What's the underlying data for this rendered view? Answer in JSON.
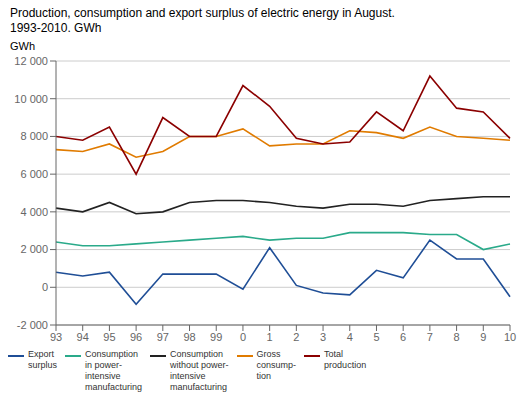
{
  "chart_data": {
    "type": "line",
    "title": "Production, consumption and export surplus of electric energy in August.",
    "subtitle": "1993-2010. GWh",
    "y_label": "GWh",
    "categories": [
      "93",
      "94",
      "95",
      "96",
      "97",
      "98",
      "99",
      "0",
      "1",
      "2",
      "3",
      "4",
      "5",
      "6",
      "7",
      "8",
      "9",
      "10"
    ],
    "series": [
      {
        "name": "Export\nsurplus",
        "color": "#1f4e96",
        "values": [
          800,
          600,
          800,
          -900,
          700,
          700,
          700,
          -100,
          2100,
          100,
          -300,
          -400,
          900,
          500,
          2500,
          1500,
          1500,
          -500
        ]
      },
      {
        "name": "Consumption\nin power-\nintensive\nmanufacturing",
        "color": "#2aaa8a",
        "values": [
          2400,
          2200,
          2200,
          2300,
          2400,
          2500,
          2600,
          2700,
          2500,
          2600,
          2600,
          2900,
          2900,
          2900,
          2800,
          2800,
          2000,
          2300
        ]
      },
      {
        "name": "Consumption\nwithout power-\nintensive\nmanufacturing",
        "color": "#222222",
        "values": [
          4200,
          4000,
          4500,
          3900,
          4000,
          4500,
          4600,
          4600,
          4500,
          4300,
          4200,
          4400,
          4400,
          4300,
          4600,
          4700,
          4800,
          4800
        ]
      },
      {
        "name": "Gross\nconsump-\ntion",
        "color": "#e07b00",
        "values": [
          7300,
          7200,
          7600,
          6900,
          7200,
          8000,
          8000,
          8400,
          7500,
          7600,
          7600,
          8300,
          8200,
          7900,
          8500,
          8000,
          7900,
          7800
        ]
      },
      {
        "name": "Total\nproduction",
        "color": "#8b0000",
        "values": [
          8000,
          7800,
          8500,
          6000,
          9000,
          8000,
          8000,
          10700,
          9600,
          7900,
          7600,
          7700,
          9300,
          8300,
          11200,
          9500,
          9300,
          7900
        ]
      }
    ],
    "ylim": [
      -2000,
      12000
    ],
    "yticks": [
      {
        "value": -2000,
        "label": "-2 000"
      },
      0,
      {
        "value": 2000,
        "label": "2 000"
      },
      {
        "value": 4000,
        "label": "4 000"
      },
      {
        "value": 6000,
        "label": "6 000"
      },
      {
        "value": 8000,
        "label": "8 000"
      },
      {
        "value": 10000,
        "label": "10 000"
      },
      {
        "value": 12000,
        "label": "12 000"
      }
    ],
    "grid": true,
    "legend": "bottom"
  }
}
